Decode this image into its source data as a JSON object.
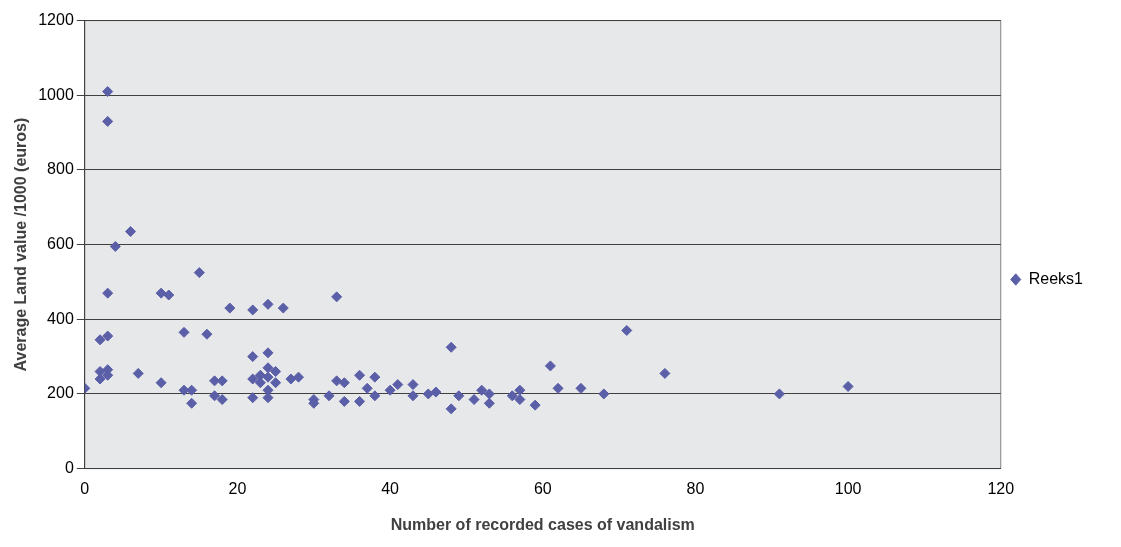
{
  "chart_data": {
    "type": "scatter",
    "xlabel": "Number of recorded cases of vandalism",
    "ylabel": "Average Land value /1000 (euros)",
    "xlim": [
      0,
      120
    ],
    "xticks": [
      0,
      20,
      40,
      60,
      80,
      100,
      120
    ],
    "ylim": [
      0,
      1200
    ],
    "yticks": [
      0,
      200,
      400,
      600,
      800,
      1000,
      1200
    ],
    "grid": "y",
    "legend": "right",
    "marker": "diamond",
    "x": [
      0,
      2,
      2,
      2,
      3,
      3,
      3,
      3,
      3,
      3,
      4,
      6,
      7,
      10,
      10,
      11,
      13,
      13,
      14,
      14,
      15,
      16,
      17,
      17,
      18,
      18,
      19,
      22,
      22,
      22,
      22,
      23,
      23,
      24,
      24,
      24,
      24,
      24,
      24,
      25,
      25,
      26,
      27,
      28,
      30,
      30,
      32,
      33,
      33,
      34,
      34,
      36,
      36,
      37,
      38,
      38,
      40,
      41,
      43,
      43,
      45,
      46,
      48,
      48,
      49,
      51,
      52,
      53,
      53,
      56,
      57,
      57,
      59,
      61,
      62,
      65,
      68,
      71,
      76,
      91,
      100
    ],
    "series": [
      {
        "name": "Reeks1",
        "color": "#5b5fa8",
        "values": [
          215,
          260,
          345,
          240,
          1010,
          930,
          470,
          355,
          250,
          265,
          595,
          635,
          255,
          470,
          230,
          465,
          365,
          210,
          175,
          210,
          525,
          360,
          235,
          195,
          185,
          235,
          430,
          425,
          300,
          240,
          190,
          250,
          230,
          440,
          310,
          270,
          245,
          210,
          190,
          260,
          230,
          430,
          240,
          245,
          185,
          175,
          195,
          460,
          235,
          230,
          180,
          250,
          180,
          215,
          245,
          195,
          210,
          225,
          225,
          195,
          200,
          205,
          325,
          160,
          195,
          185,
          210,
          200,
          175,
          195,
          210,
          185,
          170,
          275,
          215,
          215,
          200,
          370,
          255,
          200,
          220
        ]
      }
    ]
  }
}
